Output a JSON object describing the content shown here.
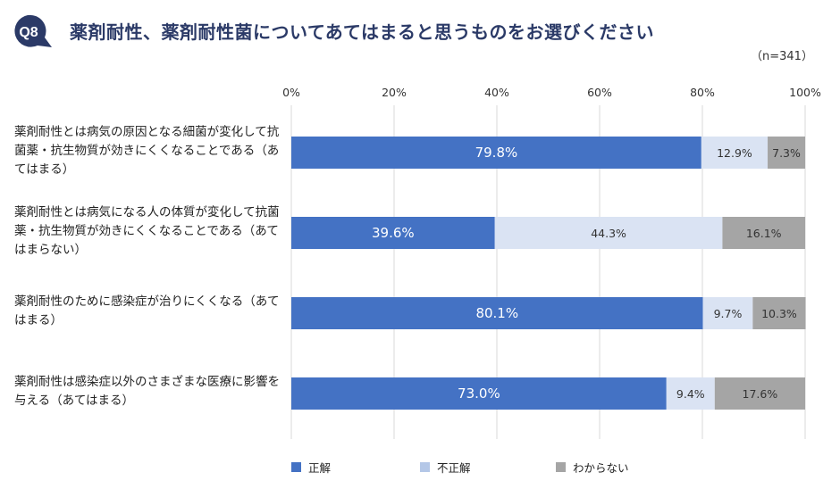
{
  "header": {
    "badge": "Q8",
    "title": "薬剤耐性、薬剤耐性菌についてあてはまると思うものをお選びください",
    "note": "（n=341）"
  },
  "chart_data": {
    "type": "bar",
    "orientation": "horizontal",
    "stacked": true,
    "x_ticks": [
      "0%",
      "20%",
      "40%",
      "60%",
      "80%",
      "100%"
    ],
    "xlim": [
      0,
      100
    ],
    "categories": [
      "薬剤耐性とは病気の原因となる細菌が変化して抗菌薬・抗生物質が効きにくくなることである（あてはまる）",
      "薬剤耐性とは病気になる人の体質が変化して抗菌薬・抗生物質が効きにくくなることである（あてはまらない）",
      "薬剤耐性のために感染症が治りにくくなる（あてはまる）",
      "薬剤耐性は感染症以外のさまざまな医療に影響を与える（あてはまる）"
    ],
    "series": [
      {
        "name": "正解",
        "color": "#4472c4",
        "values": [
          79.8,
          39.6,
          80.1,
          73.0
        ],
        "labels": [
          "79.8%",
          "39.6%",
          "80.1%",
          "73.0%"
        ]
      },
      {
        "name": "不正解",
        "color": "#dae3f3",
        "values": [
          12.9,
          44.3,
          9.7,
          9.4
        ],
        "labels": [
          "12.9%",
          "44.3%",
          "9.7%",
          "9.4%"
        ]
      },
      {
        "name": "わからない",
        "color": "#a5a5a5",
        "values": [
          7.3,
          16.1,
          10.3,
          17.6
        ],
        "labels": [
          "7.3%",
          "16.1%",
          "10.3%",
          "17.6%"
        ]
      }
    ],
    "grid": true,
    "legend_position": "bottom"
  }
}
